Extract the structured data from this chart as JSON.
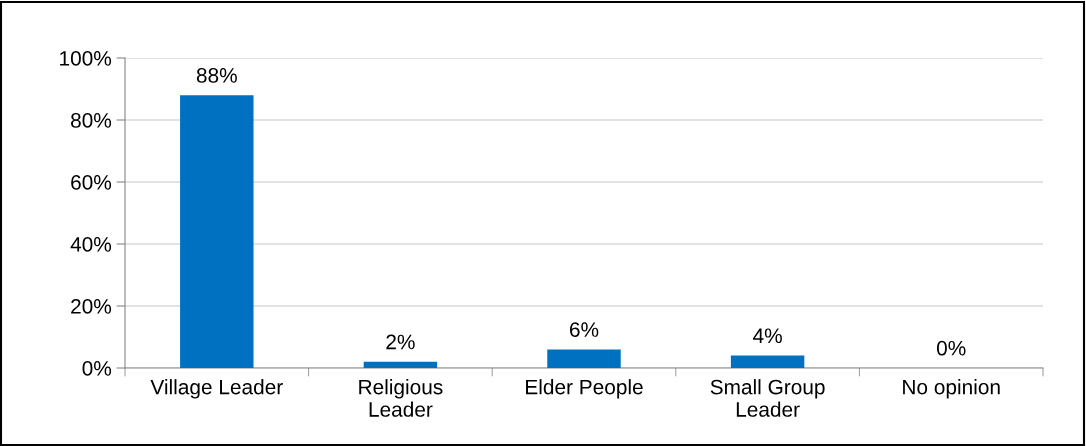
{
  "chart_data": {
    "type": "bar",
    "categories": [
      "Village Leader",
      "Religious\nLeader",
      "Elder People",
      "Small Group\nLeader",
      "No opinion"
    ],
    "values": [
      88,
      2,
      6,
      4,
      0
    ],
    "value_labels": [
      "88%",
      "2%",
      "6%",
      "4%",
      "0%"
    ],
    "color": "#0070c0",
    "ylim": [
      0,
      100
    ],
    "yticks": [
      {
        "value": 0,
        "label": "0%"
      },
      {
        "value": 20,
        "label": "20%"
      },
      {
        "value": 40,
        "label": "40%"
      },
      {
        "value": 60,
        "label": "60%"
      },
      {
        "value": 80,
        "label": "80%"
      },
      {
        "value": 100,
        "label": "100%"
      }
    ],
    "grid": "y",
    "legend": false
  }
}
